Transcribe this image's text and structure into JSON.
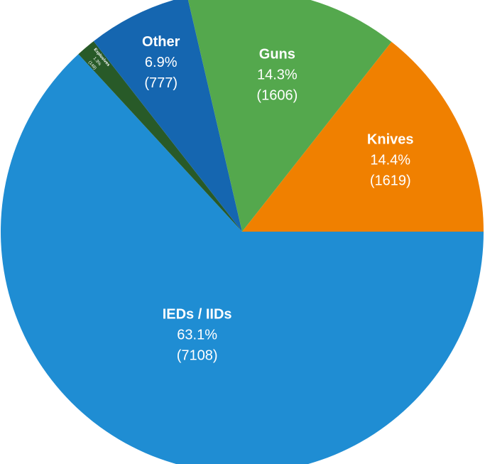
{
  "chart_data": {
    "type": "pie",
    "start": "3 o'clock, clockwise",
    "slices": [
      {
        "label": "IEDs / IIDs",
        "percent": "63.1%",
        "count": "(7108)",
        "value": 7108,
        "color": "#1f8dd3"
      },
      {
        "label": "Explosives",
        "percent": "1.3%",
        "count": "(148)",
        "value": 148,
        "color": "#285a28"
      },
      {
        "label": "Other",
        "percent": "6.9%",
        "count": "(777)",
        "value": 777,
        "color": "#1566b0"
      },
      {
        "label": "Guns",
        "percent": "14.3%",
        "count": "(1606)",
        "value": 1606,
        "color": "#54a84d"
      },
      {
        "label": "Knives",
        "percent": "14.4%",
        "count": "(1619)",
        "value": 1619,
        "color": "#f08000"
      }
    ]
  }
}
